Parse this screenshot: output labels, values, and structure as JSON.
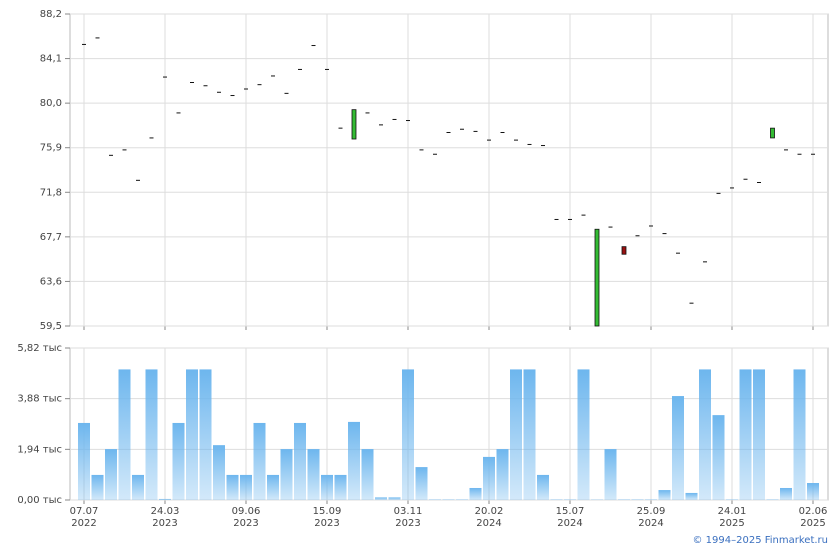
{
  "chart_data": [
    {
      "type": "candlestick",
      "open": [
        85.4,
        86.0,
        75.2,
        75.7,
        72.9,
        76.8,
        82.4,
        79.1,
        81.9,
        81.6,
        81.0,
        80.7,
        81.3,
        81.7,
        82.5,
        80.9,
        83.1,
        85.3,
        83.1,
        77.7,
        76.7,
        79.1,
        78.0,
        78.5,
        78.4,
        75.7,
        75.3,
        77.3,
        77.6,
        77.4,
        76.6,
        77.3,
        76.6,
        76.2,
        76.1,
        69.3,
        69.3,
        69.7,
        59.5,
        68.6,
        66.8,
        67.8,
        68.7,
        68.0,
        66.2,
        61.6,
        65.4,
        71.7,
        72.2,
        73.0,
        72.7,
        76.8,
        75.7,
        75.3,
        75.3
      ],
      "close": [
        85.4,
        86.0,
        75.2,
        75.7,
        72.9,
        76.8,
        82.4,
        79.1,
        81.9,
        81.6,
        81.0,
        80.7,
        81.3,
        81.7,
        82.5,
        80.9,
        83.1,
        85.3,
        83.1,
        77.7,
        79.4,
        79.1,
        78.0,
        78.5,
        78.4,
        75.7,
        75.3,
        77.3,
        77.6,
        77.4,
        76.6,
        77.3,
        76.6,
        76.2,
        76.1,
        69.3,
        69.3,
        69.7,
        68.4,
        68.6,
        66.1,
        67.8,
        68.7,
        68.0,
        66.2,
        61.6,
        65.4,
        71.7,
        72.2,
        73.0,
        72.7,
        77.7,
        75.7,
        75.3,
        75.3
      ],
      "color_up": "#33bb33",
      "color_down": "#991111",
      "color": "#111111",
      "ylim": [
        59.5,
        88.2
      ],
      "yticks": [
        {
          "value": 59.5,
          "label": "59,5"
        },
        {
          "value": 63.6,
          "label": "63,6"
        },
        {
          "value": 67.7,
          "label": "67,7"
        },
        {
          "value": 71.8,
          "label": "71,8"
        },
        {
          "value": 75.9,
          "label": "75,9"
        },
        {
          "value": 80.0,
          "label": "80,0"
        },
        {
          "value": 84.1,
          "label": "84,1"
        },
        {
          "value": 88.2,
          "label": "88,2"
        }
      ],
      "grid": true
    },
    {
      "type": "bar",
      "categories": [
        "07.07\n2022",
        null,
        null,
        null,
        null,
        null,
        "24.03\n2023",
        null,
        null,
        null,
        null,
        null,
        "09.06\n2023",
        null,
        null,
        null,
        null,
        null,
        "15.09\n2023",
        null,
        null,
        null,
        null,
        null,
        "03.11\n2023",
        null,
        null,
        null,
        null,
        null,
        "20.02\n2024",
        null,
        null,
        null,
        null,
        null,
        "15.07\n2024",
        null,
        null,
        null,
        null,
        null,
        "25.09\n2024",
        null,
        null,
        null,
        null,
        null,
        "24.01\n2025",
        null,
        null,
        null,
        null,
        null,
        "02.06\n2025"
      ],
      "values": [
        2.95,
        0.96,
        1.95,
        5.0,
        0.96,
        5.0,
        0.04,
        2.95,
        5.0,
        5.0,
        2.1,
        0.96,
        0.96,
        2.95,
        0.96,
        1.95,
        2.95,
        1.95,
        0.96,
        0.96,
        2.99,
        1.95,
        0.1,
        0.1,
        5.0,
        1.26,
        0.02,
        0.02,
        0.02,
        0.46,
        1.65,
        1.95,
        5.0,
        5.0,
        0.96,
        0.02,
        0.02,
        5.0,
        0.01,
        1.95,
        0.02,
        0.02,
        0.02,
        0.38,
        3.98,
        0.27,
        5.0,
        3.25,
        0.02,
        5.0,
        5.0,
        0.02,
        0.46,
        5.0,
        0.65
      ],
      "color": "#6db6ee",
      "ylim": [
        0,
        5.82
      ],
      "yticks": [
        {
          "value": 0,
          "label": "0,00 тыс"
        },
        {
          "value": 1.94,
          "label": "1,94 тыс"
        },
        {
          "value": 3.88,
          "label": "3,88 тыс"
        },
        {
          "value": 5.82,
          "label": "5,82 тыс"
        }
      ],
      "grid": true
    }
  ],
  "footer": "© 1994–2025 Finmarket.ru"
}
